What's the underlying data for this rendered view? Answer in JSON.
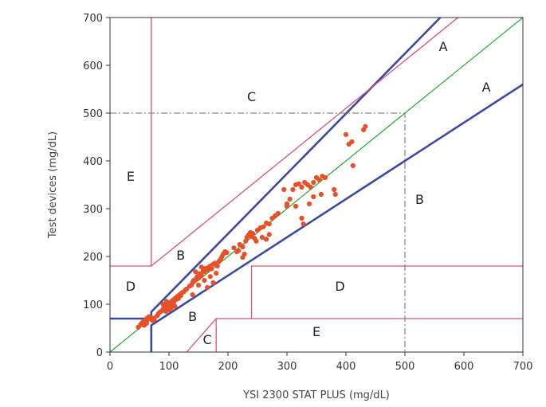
{
  "chart_data": {
    "type": "scatter",
    "title": "",
    "xlabel": "YSI 2300 STAT PLUS (mg/dL)",
    "ylabel": "Test devices (mg/dL)",
    "xlim": [
      0,
      700
    ],
    "ylim": [
      0,
      700
    ],
    "xticks": [
      "0",
      "100",
      "200",
      "300",
      "400",
      "500",
      "600",
      "700"
    ],
    "yticks": [
      "0",
      "100",
      "200",
      "300",
      "400",
      "500",
      "600",
      "700"
    ],
    "grid": false,
    "colors": {
      "points": "#e8502a",
      "identity": "#22aa33",
      "zone_a": "#3b4aa0",
      "zone_other": "#d9507a",
      "reference": "#8a8a8a",
      "axis": "#333333"
    },
    "reference_lines": [
      {
        "type": "identity",
        "from": [
          0,
          0
        ],
        "to": [
          700,
          700
        ]
      },
      {
        "type": "zone_a_upper",
        "points": [
          [
            0,
            70
          ],
          [
            70,
            70
          ],
          [
            70,
            84
          ],
          [
            560,
            700
          ]
        ]
      },
      {
        "type": "zone_a_lower",
        "points": [
          [
            70,
            0
          ],
          [
            70,
            56
          ],
          [
            700,
            560
          ]
        ]
      },
      {
        "type": "zone_c_upper",
        "points": [
          [
            70,
            180
          ],
          [
            590,
            700
          ]
        ]
      },
      {
        "type": "zone_e_upper",
        "points": [
          [
            0,
            180
          ],
          [
            70,
            180
          ],
          [
            70,
            700
          ]
        ]
      },
      {
        "type": "zone_d_right",
        "points": [
          [
            240,
            70
          ],
          [
            240,
            180
          ],
          [
            700,
            180
          ]
        ]
      },
      {
        "type": "zone_e_lower",
        "points": [
          [
            180,
            0
          ],
          [
            180,
            70
          ],
          [
            700,
            70
          ]
        ]
      },
      {
        "type": "zone_c_lower",
        "points": [
          [
            130,
            0
          ],
          [
            180,
            70
          ]
        ]
      },
      {
        "type": "dashed_500",
        "points": [
          [
            0,
            500
          ],
          [
            500,
            500
          ],
          [
            500,
            0
          ]
        ]
      }
    ],
    "zone_labels": [
      {
        "text": "A",
        "x": 565,
        "y": 630
      },
      {
        "text": "A",
        "x": 638,
        "y": 545
      },
      {
        "text": "B",
        "x": 120,
        "y": 193
      },
      {
        "text": "B",
        "x": 525,
        "y": 310
      },
      {
        "text": "B",
        "x": 140,
        "y": 65
      },
      {
        "text": "C",
        "x": 240,
        "y": 525
      },
      {
        "text": "C",
        "x": 165,
        "y": 17
      },
      {
        "text": "D",
        "x": 35,
        "y": 128
      },
      {
        "text": "D",
        "x": 390,
        "y": 128
      },
      {
        "text": "E",
        "x": 35,
        "y": 358
      },
      {
        "text": "E",
        "x": 350,
        "y": 33
      }
    ],
    "series": [
      {
        "points": [
          [
            48,
            52
          ],
          [
            52,
            58
          ],
          [
            55,
            62
          ],
          [
            57,
            64
          ],
          [
            60,
            66
          ],
          [
            62,
            70
          ],
          [
            64,
            68
          ],
          [
            66,
            74
          ],
          [
            68,
            70
          ],
          [
            70,
            72
          ],
          [
            72,
            66
          ],
          [
            73,
            70
          ],
          [
            75,
            68
          ],
          [
            58,
            56
          ],
          [
            62,
            60
          ],
          [
            80,
            76
          ],
          [
            82,
            80
          ],
          [
            85,
            84
          ],
          [
            88,
            86
          ],
          [
            90,
            90
          ],
          [
            92,
            88
          ],
          [
            94,
            92
          ],
          [
            96,
            96
          ],
          [
            98,
            100
          ],
          [
            100,
            98
          ],
          [
            102,
            104
          ],
          [
            104,
            100
          ],
          [
            106,
            108
          ],
          [
            108,
            104
          ],
          [
            110,
            112
          ],
          [
            112,
            110
          ],
          [
            114,
            116
          ],
          [
            116,
            112
          ],
          [
            118,
            120
          ],
          [
            120,
            118
          ],
          [
            122,
            124
          ],
          [
            125,
            126
          ],
          [
            128,
            130
          ],
          [
            90,
            100
          ],
          [
            96,
            106
          ],
          [
            104,
            92
          ],
          [
            110,
            96
          ],
          [
            100,
            88
          ],
          [
            95,
            85
          ],
          [
            130,
            132
          ],
          [
            135,
            138
          ],
          [
            138,
            140
          ],
          [
            140,
            146
          ],
          [
            142,
            150
          ],
          [
            145,
            152
          ],
          [
            148,
            158
          ],
          [
            150,
            155
          ],
          [
            152,
            164
          ],
          [
            155,
            160
          ],
          [
            158,
            170
          ],
          [
            160,
            168
          ],
          [
            162,
            175
          ],
          [
            165,
            172
          ],
          [
            168,
            178
          ],
          [
            170,
            180
          ],
          [
            172,
            174
          ],
          [
            175,
            184
          ],
          [
            178,
            186
          ],
          [
            180,
            182
          ],
          [
            182,
            180
          ],
          [
            185,
            190
          ],
          [
            188,
            195
          ],
          [
            190,
            200
          ],
          [
            192,
            205
          ],
          [
            195,
            210
          ],
          [
            198,
            208
          ],
          [
            150,
            140
          ],
          [
            160,
            150
          ],
          [
            170,
            158
          ],
          [
            180,
            165
          ],
          [
            175,
            145
          ],
          [
            165,
            135
          ],
          [
            140,
            120
          ],
          [
            155,
            178
          ],
          [
            145,
            168
          ],
          [
            210,
            218
          ],
          [
            215,
            210
          ],
          [
            220,
            225
          ],
          [
            225,
            220
          ],
          [
            230,
            232
          ],
          [
            232,
            240
          ],
          [
            235,
            245
          ],
          [
            238,
            250
          ],
          [
            240,
            242
          ],
          [
            242,
            248
          ],
          [
            245,
            238
          ],
          [
            250,
            255
          ],
          [
            255,
            260
          ],
          [
            260,
            262
          ],
          [
            265,
            270
          ],
          [
            270,
            268
          ],
          [
            275,
            280
          ],
          [
            280,
            285
          ],
          [
            285,
            290
          ],
          [
            218,
            212
          ],
          [
            228,
            205
          ],
          [
            248,
            232
          ],
          [
            258,
            240
          ],
          [
            270,
            246
          ],
          [
            265,
            236
          ],
          [
            225,
            198
          ],
          [
            300,
            310
          ],
          [
            305,
            320
          ],
          [
            310,
            340
          ],
          [
            315,
            350
          ],
          [
            320,
            352
          ],
          [
            325,
            345
          ],
          [
            330,
            355
          ],
          [
            335,
            350
          ],
          [
            340,
            345
          ],
          [
            345,
            355
          ],
          [
            350,
            365
          ],
          [
            355,
            360
          ],
          [
            360,
            368
          ],
          [
            365,
            365
          ],
          [
            295,
            340
          ],
          [
            300,
            305
          ],
          [
            315,
            305
          ],
          [
            325,
            280
          ],
          [
            328,
            268
          ],
          [
            338,
            310
          ],
          [
            345,
            325
          ],
          [
            358,
            330
          ],
          [
            380,
            340
          ],
          [
            382,
            330
          ],
          [
            400,
            455
          ],
          [
            405,
            435
          ],
          [
            410,
            440
          ],
          [
            412,
            390
          ],
          [
            430,
            465
          ],
          [
            433,
            472
          ]
        ]
      }
    ]
  }
}
